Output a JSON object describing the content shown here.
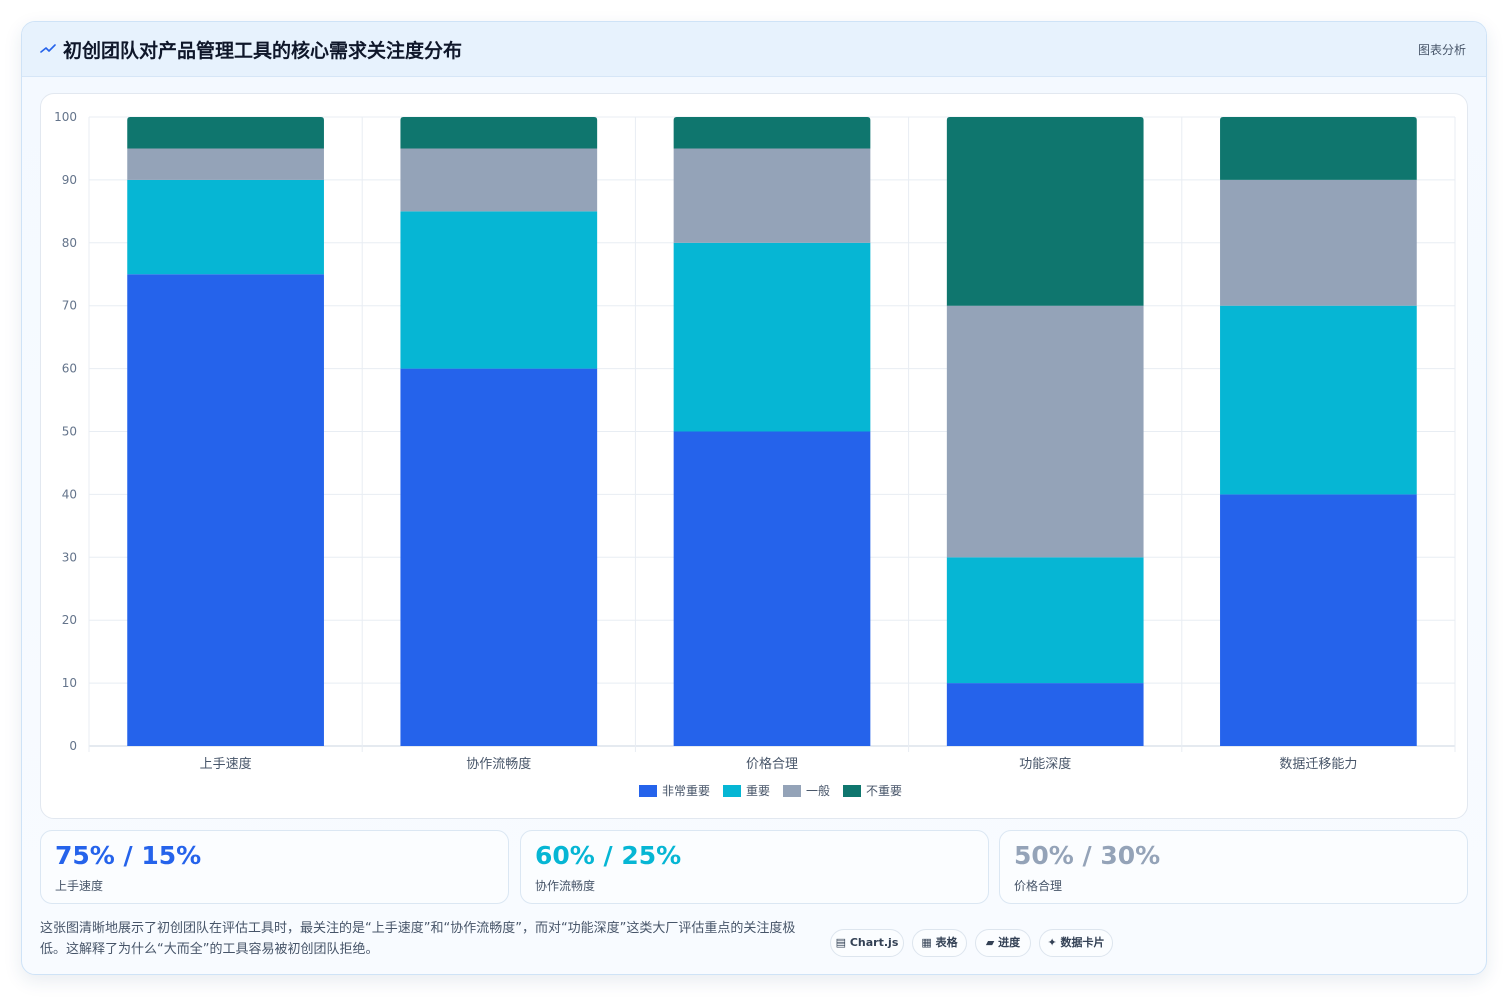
{
  "header": {
    "title": "初创团队对产品管理工具的核心需求关注度分布",
    "tag": "图表分析",
    "icon": "trend-line-icon"
  },
  "colors": {
    "very_important": "#2563eb",
    "important": "#06b6d4",
    "normal": "#94a3b8",
    "not_important": "#0f766e"
  },
  "chart_data": {
    "type": "bar",
    "stacked": true,
    "categories": [
      "上手速度",
      "协作流畅度",
      "价格合理",
      "功能深度",
      "数据迁移能力"
    ],
    "series": [
      {
        "name": "非常重要",
        "color": "#2563eb",
        "values": [
          75,
          60,
          50,
          10,
          40
        ]
      },
      {
        "name": "重要",
        "color": "#06b6d4",
        "values": [
          15,
          25,
          30,
          20,
          30
        ]
      },
      {
        "name": "一般",
        "color": "#94a3b8",
        "values": [
          5,
          10,
          15,
          40,
          20
        ]
      },
      {
        "name": "不重要",
        "color": "#0f766e",
        "values": [
          5,
          5,
          5,
          30,
          10
        ]
      }
    ],
    "ylim": [
      0,
      100
    ],
    "yticks": [
      0,
      10,
      20,
      30,
      40,
      50,
      60,
      70,
      80,
      90,
      100
    ],
    "grid": true,
    "legend_position": "bottom"
  },
  "stats": [
    {
      "value": "75% / 15%",
      "label": "上手速度",
      "color": "#2563eb"
    },
    {
      "value": "60% / 25%",
      "label": "协作流畅度",
      "color": "#06b6d4"
    },
    {
      "value": "50% / 30%",
      "label": "价格合理",
      "color": "#94a3b8"
    }
  ],
  "note": "这张图清晰地展示了初创团队在评估工具时，最关注的是“上手速度”和“协作流畅度”，而对“功能深度”这类大厂评估重点的关注度极低。这解释了为什么“大而全”的工具容易被初创团队拒绝。",
  "chips": [
    {
      "glyph": "▤",
      "label": "Chart.js",
      "icon": "chart-icon"
    },
    {
      "glyph": "▦",
      "label": "表格",
      "icon": "table-icon"
    },
    {
      "glyph": "▰",
      "label": "进度",
      "icon": "progress-icon"
    },
    {
      "glyph": "✦",
      "label": "数据卡片",
      "icon": "sparkle-icon"
    }
  ]
}
